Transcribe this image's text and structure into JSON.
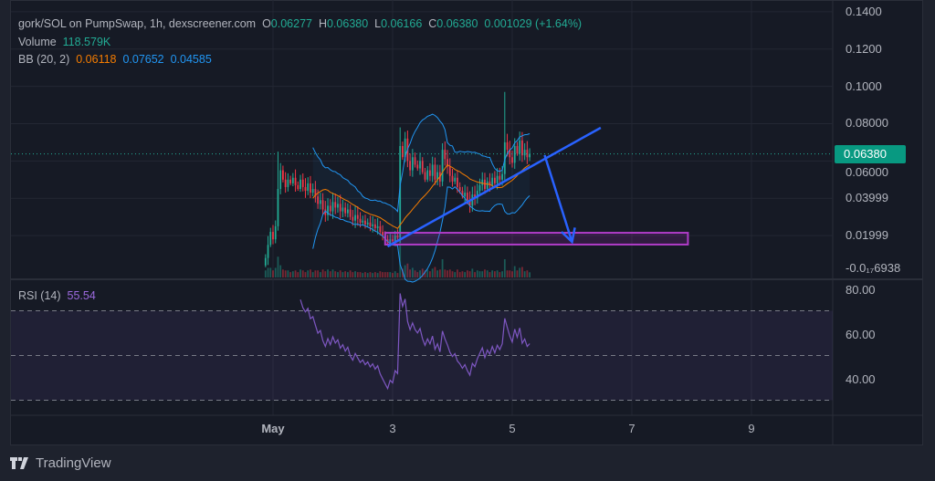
{
  "legend": {
    "symbol": "gork/SOL on PumpSwap, 1h, dexscreener.com",
    "ohlc": [
      {
        "k": "O",
        "v": "0.06277"
      },
      {
        "k": "H",
        "v": "0.06380"
      },
      {
        "k": "L",
        "v": "0.06166"
      },
      {
        "k": "C",
        "v": "0.06380"
      }
    ],
    "change": "0.001029 (+1.64%)",
    "volume_label": "Volume",
    "volume_value": "118.579K",
    "bb_label": "BB (20, 2)",
    "bb_basis": "0.06118",
    "bb_upper": "0.07652",
    "bb_lower": "0.04585",
    "rsi_label": "RSI (14)",
    "rsi_value": "55.54"
  },
  "colors": {
    "up": "#22ab94",
    "down": "#f23645",
    "bb_basis": "#f57c00",
    "bb_band": "#2196f3",
    "rsi": "#7e57c2",
    "drawing": "#2962ff",
    "zone": "#9c27b0",
    "last_price_badge": "#089981"
  },
  "last_price": "0.06380",
  "branding": "TradingView",
  "chart_data": [
    {
      "type": "candlestick",
      "interval": "1h",
      "first_candle": "Apr 30 21:00",
      "closes": [
        0.008,
        0.015,
        0.022,
        0.018,
        0.025,
        0.045,
        0.055,
        0.05,
        0.046,
        0.05,
        0.048,
        0.051,
        0.047,
        0.045,
        0.05,
        0.046,
        0.044,
        0.048,
        0.043,
        0.045,
        0.041,
        0.037,
        0.039,
        0.034,
        0.031,
        0.036,
        0.033,
        0.038,
        0.035,
        0.037,
        0.033,
        0.035,
        0.032,
        0.034,
        0.03,
        0.028,
        0.031,
        0.029,
        0.027,
        0.028,
        0.026,
        0.027,
        0.025,
        0.026,
        0.024,
        0.025,
        0.022,
        0.02,
        0.018,
        0.016,
        0.018,
        0.017,
        0.02,
        0.019,
        0.068,
        0.062,
        0.072,
        0.06,
        0.055,
        0.062,
        0.058,
        0.056,
        0.06,
        0.054,
        0.05,
        0.055,
        0.052,
        0.058,
        0.05,
        0.054,
        0.049,
        0.066,
        0.061,
        0.057,
        0.052,
        0.049,
        0.051,
        0.046,
        0.044,
        0.041,
        0.043,
        0.039,
        0.036,
        0.042,
        0.04,
        0.044,
        0.047,
        0.05,
        0.045,
        0.049,
        0.047,
        0.051,
        0.048,
        0.052,
        0.05,
        0.053,
        0.07,
        0.066,
        0.062,
        0.059,
        0.068,
        0.064,
        0.071,
        0.063,
        0.066,
        0.062,
        0.0638
      ],
      "spike_highs": {
        "5": 0.065,
        "54": 0.078,
        "96": 0.097
      },
      "y_ticks": [
        "0.1400",
        "0.1200",
        "0.1000",
        "0.08000",
        "0.06000",
        "0.03999",
        "0.01999",
        "-0.0₁₇6938"
      ],
      "y_tick_values": [
        0.14,
        0.12,
        0.1,
        0.08,
        0.06,
        0.04,
        0.02,
        0
      ],
      "x_ticks": [
        {
          "label": "May",
          "date": "May 1 00:00"
        },
        {
          "label": "3",
          "date": "May 3 00:00"
        },
        {
          "label": "5",
          "date": "May 5 00:00"
        },
        {
          "label": "7",
          "date": "May 7 00:00"
        },
        {
          "label": "9",
          "date": "May 9 00:00"
        }
      ],
      "indicators": [
        "Volume",
        "BB (20, 2)"
      ],
      "drawings": {
        "trendline": {
          "from": {
            "date": "May 2 22:00",
            "price": 0.0142
          },
          "to": {
            "date": "May 6 11:30",
            "price": 0.0778
          }
        },
        "arrow": {
          "from": {
            "date": "May 5 13:00",
            "price": 0.0631
          },
          "to": {
            "date": "May 6 00:00",
            "price": 0.0166
          }
        },
        "zone": {
          "from": {
            "date": "May 2 21:00",
            "price": 0.0215
          },
          "to": {
            "date": "May 7 22:30",
            "price": 0.0152
          }
        }
      }
    },
    {
      "type": "line",
      "title": "RSI (14)",
      "y_ticks": [
        "80.00",
        "60.00",
        "40.00"
      ],
      "y_tick_values": [
        80,
        60,
        40
      ],
      "bands": [
        70,
        50,
        30
      ]
    }
  ]
}
